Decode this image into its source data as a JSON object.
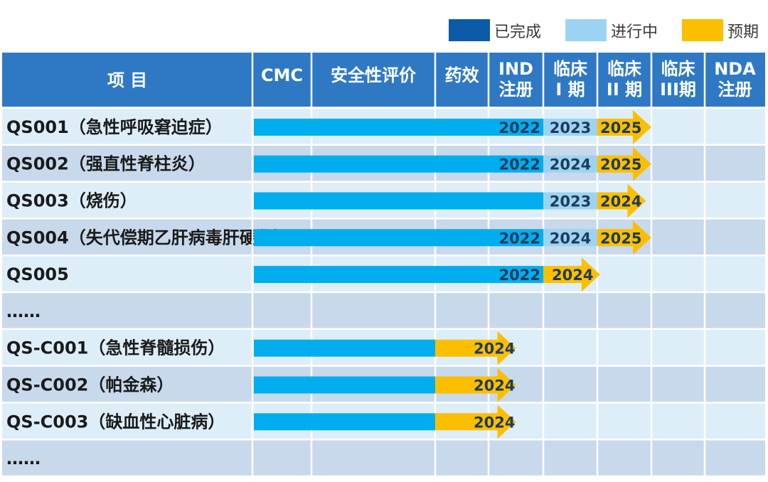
{
  "legend": [
    {
      "label": "已完成",
      "color": "#0b5aa8"
    },
    {
      "label": "进行中",
      "color": "#9dd3f2"
    },
    {
      "label": "预期",
      "color": "#fbbf00"
    }
  ],
  "colors": {
    "header_bg": "#2f79c4",
    "header_text": "#ffffff",
    "row_light": "#ddeef9",
    "row_dark": "#c8d9ec",
    "grid_line": "#ffffff",
    "completed_bar": "#00aeef",
    "in_progress_bar": "#9dd3f2",
    "expected_bar": "#fbbf00",
    "bar_label_text": "#1f3a5a",
    "row_label_text": "#1a1a1a"
  },
  "chart_data": {
    "type": "table",
    "title": "",
    "stage_columns": [
      {
        "key": "cmc",
        "lines": [
          "CMC"
        ]
      },
      {
        "key": "safety",
        "lines": [
          "安全性评价"
        ]
      },
      {
        "key": "efficacy",
        "lines": [
          "药效"
        ]
      },
      {
        "key": "ind",
        "lines": [
          "IND",
          "注册"
        ]
      },
      {
        "key": "phase1",
        "lines": [
          "临床",
          "I 期"
        ]
      },
      {
        "key": "phase2",
        "lines": [
          "临床",
          "II 期"
        ]
      },
      {
        "key": "phase3",
        "lines": [
          "临床",
          "III期"
        ]
      },
      {
        "key": "nda",
        "lines": [
          "NDA",
          "注册"
        ]
      }
    ],
    "project_header": "项 目",
    "rows": [
      {
        "name": "QS001（急性呼吸窘迫症）",
        "completed_to_stage": 4.0,
        "in_progress_to_stage": 5.0,
        "expected_to_stage": 6.0,
        "labels": {
          "completed": "2022",
          "in_progress": "2023",
          "expected": "2025"
        }
      },
      {
        "name": "QS002（强直性脊柱炎）",
        "completed_to_stage": 4.0,
        "in_progress_to_stage": 5.0,
        "expected_to_stage": 6.0,
        "labels": {
          "completed": "2022",
          "in_progress": "2024",
          "expected": "2025"
        }
      },
      {
        "name": "QS003（烧伤）",
        "completed_to_stage": 4.0,
        "in_progress_to_stage": 5.0,
        "expected_to_stage": 5.9,
        "labels": {
          "completed": "",
          "in_progress": "2023",
          "expected": "2024"
        }
      },
      {
        "name": "QS004（失代偿期乙肝病毒肝硬化）",
        "completed_to_stage": 4.0,
        "in_progress_to_stage": 5.0,
        "expected_to_stage": 6.0,
        "labels": {
          "completed": "2022",
          "in_progress": "2024",
          "expected": "2025"
        }
      },
      {
        "name": "QS005",
        "completed_to_stage": 4.0,
        "in_progress_to_stage": 4.0,
        "expected_to_stage": 5.05,
        "labels": {
          "completed": "2022",
          "in_progress": "",
          "expected": "2024"
        }
      },
      {
        "name": "……",
        "ellipsis": true
      },
      {
        "name": "QS-C001（急性脊髓损伤）",
        "completed_to_stage": 2.0,
        "in_progress_to_stage": 2.0,
        "expected_to_stage": 3.5,
        "labels": {
          "completed": "",
          "in_progress": "",
          "expected": "2024"
        }
      },
      {
        "name": "QS-C002（帕金森）",
        "completed_to_stage": 2.0,
        "in_progress_to_stage": 2.0,
        "expected_to_stage": 3.5,
        "labels": {
          "completed": "",
          "in_progress": "",
          "expected": "2024"
        }
      },
      {
        "name": "QS-C003（缺血性心脏病）",
        "completed_to_stage": 2.0,
        "in_progress_to_stage": 2.0,
        "expected_to_stage": 3.5,
        "labels": {
          "completed": "",
          "in_progress": "",
          "expected": "2024"
        }
      },
      {
        "name": "……",
        "ellipsis": true
      }
    ]
  }
}
